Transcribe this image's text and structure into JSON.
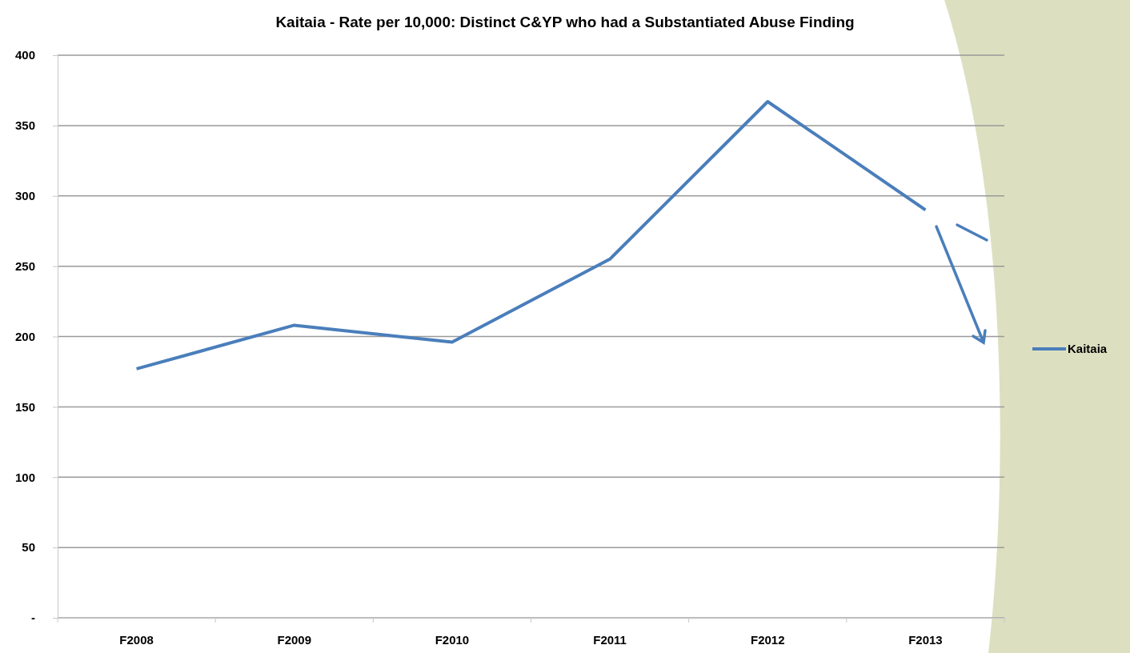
{
  "chart_data": {
    "type": "line",
    "title": "Kaitaia - Rate per 10,000: Distinct C&YP who had a Substantiated Abuse Finding",
    "categories": [
      "F2008",
      "F2009",
      "F2010",
      "F2011",
      "F2012",
      "F2013"
    ],
    "series": [
      {
        "name": "Kaitaia",
        "color": "#4a7ebb",
        "values": [
          177,
          208,
          196,
          255,
          367,
          290
        ]
      }
    ],
    "ylim": [
      0,
      400
    ],
    "yticks": [
      {
        "value": 0,
        "label": "-"
      },
      50,
      100,
      150,
      200,
      250,
      300,
      350,
      400
    ],
    "grid": "y",
    "legend": "right",
    "marker": "none",
    "line_style": "solid"
  }
}
